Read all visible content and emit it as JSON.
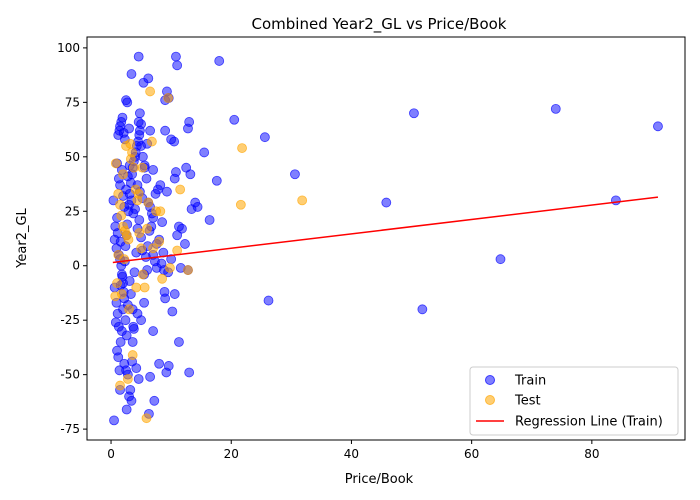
{
  "chart_data": {
    "type": "scatter",
    "title": "Combined Year2_GL vs Price/Book",
    "xlabel": "Price/Book",
    "ylabel": "Year2_GL",
    "xlim": [
      -4,
      95.5
    ],
    "ylim": [
      -80,
      105
    ],
    "xticks": [
      0,
      20,
      40,
      60,
      80
    ],
    "yticks": [
      -75,
      -50,
      -25,
      0,
      25,
      50,
      75,
      100
    ],
    "grid": false,
    "legend_position": "lower-right",
    "series": [
      {
        "name": "Train",
        "color": "#0000ff",
        "points": [
          [
            0.5,
            -71
          ],
          [
            0.8,
            -26
          ],
          [
            1.0,
            -39
          ],
          [
            1.2,
            -42
          ],
          [
            1.5,
            -57
          ],
          [
            1.4,
            -48
          ],
          [
            1.6,
            -35
          ],
          [
            1.8,
            -30
          ],
          [
            2.0,
            -20
          ],
          [
            2.2,
            -45
          ],
          [
            2.5,
            -48
          ],
          [
            2.6,
            -66
          ],
          [
            2.8,
            -50
          ],
          [
            3.0,
            -60
          ],
          [
            3.2,
            -57
          ],
          [
            3.4,
            -62
          ],
          [
            3.5,
            -44
          ],
          [
            3.6,
            -35
          ],
          [
            3.7,
            -28
          ],
          [
            3.8,
            -29
          ],
          [
            4.2,
            -47
          ],
          [
            4.6,
            -52
          ],
          [
            5.0,
            -25
          ],
          [
            5.5,
            -17
          ],
          [
            6.0,
            -2
          ],
          [
            6.3,
            -68
          ],
          [
            6.5,
            -51
          ],
          [
            7.0,
            -30
          ],
          [
            7.2,
            -62
          ],
          [
            8.0,
            -45
          ],
          [
            9.2,
            -49
          ],
          [
            9.6,
            -46
          ],
          [
            9.0,
            -15
          ],
          [
            8.9,
            -12
          ],
          [
            10.2,
            -21
          ],
          [
            10.6,
            -13
          ],
          [
            11.3,
            -35
          ],
          [
            11.6,
            -1
          ],
          [
            13.0,
            -49
          ],
          [
            12.8,
            -2
          ],
          [
            0.6,
            12
          ],
          [
            0.7,
            18
          ],
          [
            0.9,
            8
          ],
          [
            1.0,
            22
          ],
          [
            1.1,
            15
          ],
          [
            1.3,
            5
          ],
          [
            1.5,
            3
          ],
          [
            1.6,
            11
          ],
          [
            1.7,
            0
          ],
          [
            1.9,
            -5
          ],
          [
            2.0,
            -8
          ],
          [
            2.1,
            -12
          ],
          [
            2.3,
            2
          ],
          [
            2.4,
            9
          ],
          [
            2.6,
            14
          ],
          [
            2.7,
            19
          ],
          [
            2.9,
            25
          ],
          [
            3.0,
            28
          ],
          [
            3.1,
            33
          ],
          [
            3.3,
            38
          ],
          [
            3.5,
            42
          ],
          [
            3.6,
            45
          ],
          [
            3.8,
            48
          ],
          [
            4.0,
            50
          ],
          [
            4.1,
            52
          ],
          [
            4.3,
            55
          ],
          [
            4.5,
            57
          ],
          [
            4.7,
            60
          ],
          [
            4.8,
            62
          ],
          [
            5.0,
            65
          ],
          [
            1.2,
            60
          ],
          [
            1.4,
            62
          ],
          [
            1.5,
            64
          ],
          [
            1.7,
            66
          ],
          [
            1.9,
            68
          ],
          [
            2.1,
            61
          ],
          [
            2.3,
            58
          ],
          [
            2.5,
            76
          ],
          [
            2.7,
            75
          ],
          [
            3.0,
            63
          ],
          [
            3.4,
            88
          ],
          [
            4.6,
            96
          ],
          [
            5.4,
            84
          ],
          [
            6.2,
            86
          ],
          [
            4.6,
            66
          ],
          [
            4.8,
            70
          ],
          [
            5.0,
            55
          ],
          [
            5.3,
            50
          ],
          [
            5.6,
            45
          ],
          [
            5.9,
            40
          ],
          [
            6.2,
            29
          ],
          [
            6.5,
            27
          ],
          [
            6.8,
            24
          ],
          [
            7.0,
            22
          ],
          [
            7.4,
            33
          ],
          [
            7.8,
            35
          ],
          [
            8.2,
            37
          ],
          [
            8.5,
            20
          ],
          [
            8.8,
            -2
          ],
          [
            7.6,
            10
          ],
          [
            9.0,
            76
          ],
          [
            9.3,
            80
          ],
          [
            9.6,
            77
          ],
          [
            9.0,
            62
          ],
          [
            9.3,
            34
          ],
          [
            10.0,
            58
          ],
          [
            10.5,
            57
          ],
          [
            10.6,
            40
          ],
          [
            10.8,
            43
          ],
          [
            11.0,
            14
          ],
          [
            11.3,
            18
          ],
          [
            11.8,
            17
          ],
          [
            12.3,
            10
          ],
          [
            12.5,
            45
          ],
          [
            12.8,
            63
          ],
          [
            13.0,
            66
          ],
          [
            13.2,
            42
          ],
          [
            13.4,
            26
          ],
          [
            14.0,
            29
          ],
          [
            14.4,
            27
          ],
          [
            10.8,
            96
          ],
          [
            11.0,
            92
          ],
          [
            15.5,
            52
          ],
          [
            16.4,
            21
          ],
          [
            17.6,
            39
          ],
          [
            18.0,
            94
          ],
          [
            20.5,
            67
          ],
          [
            25.6,
            59
          ],
          [
            26.2,
            -16
          ],
          [
            30.6,
            42
          ],
          [
            45.8,
            29
          ],
          [
            50.4,
            70
          ],
          [
            51.8,
            -20
          ],
          [
            64.8,
            3
          ],
          [
            74.0,
            72
          ],
          [
            84.0,
            30
          ],
          [
            91.0,
            64
          ],
          [
            0.4,
            30
          ],
          [
            0.6,
            -10
          ],
          [
            0.9,
            -17
          ],
          [
            1.1,
            -22
          ],
          [
            1.3,
            -28
          ],
          [
            1.6,
            -9
          ],
          [
            1.8,
            -4
          ],
          [
            2.2,
            -15
          ],
          [
            2.4,
            -25
          ],
          [
            2.6,
            -32
          ],
          [
            2.8,
            -18
          ],
          [
            3.1,
            -7
          ],
          [
            3.3,
            -13
          ],
          [
            3.6,
            -20
          ],
          [
            3.9,
            -3
          ],
          [
            4.2,
            6
          ],
          [
            4.4,
            17
          ],
          [
            4.7,
            21
          ],
          [
            5.0,
            13
          ],
          [
            5.2,
            7
          ],
          [
            5.5,
            -4
          ],
          [
            5.8,
            4
          ],
          [
            6.1,
            9
          ],
          [
            6.4,
            16
          ],
          [
            6.7,
            18
          ],
          [
            7.0,
            5
          ],
          [
            7.3,
            2
          ],
          [
            7.6,
            -1
          ],
          [
            8.0,
            12
          ],
          [
            8.4,
            1
          ],
          [
            8.7,
            6
          ],
          [
            9.5,
            -3
          ],
          [
            10.0,
            3
          ],
          [
            1.0,
            47
          ],
          [
            1.3,
            40
          ],
          [
            1.5,
            37
          ],
          [
            1.8,
            44
          ],
          [
            2.0,
            32
          ],
          [
            2.2,
            27
          ],
          [
            2.5,
            35
          ],
          [
            2.8,
            41
          ],
          [
            3.1,
            46
          ],
          [
            3.4,
            30
          ],
          [
            3.7,
            24
          ],
          [
            4.0,
            26
          ],
          [
            4.4,
            37
          ],
          [
            4.8,
            34
          ],
          [
            5.2,
            31
          ],
          [
            5.6,
            46
          ],
          [
            6.0,
            56
          ],
          [
            6.5,
            62
          ],
          [
            7.0,
            44
          ],
          [
            4.4,
            -22
          ]
        ]
      },
      {
        "name": "Test",
        "color": "#ffa500",
        "points": [
          [
            0.8,
            47
          ],
          [
            1.2,
            33
          ],
          [
            1.5,
            28
          ],
          [
            1.7,
            23
          ],
          [
            2.0,
            18
          ],
          [
            2.3,
            16
          ],
          [
            2.6,
            14
          ],
          [
            2.9,
            12
          ],
          [
            3.2,
            56
          ],
          [
            3.5,
            52
          ],
          [
            3.8,
            45
          ],
          [
            4.1,
            35
          ],
          [
            4.4,
            30
          ],
          [
            4.7,
            15
          ],
          [
            5.0,
            8
          ],
          [
            5.3,
            -4
          ],
          [
            5.6,
            -10
          ],
          [
            5.9,
            -70
          ],
          [
            6.5,
            80
          ],
          [
            6.8,
            57
          ],
          [
            7.0,
            8
          ],
          [
            7.5,
            25
          ],
          [
            8.0,
            11
          ],
          [
            8.5,
            -6
          ],
          [
            9.5,
            77
          ],
          [
            9.8,
            -1
          ],
          [
            11.0,
            7
          ],
          [
            11.5,
            35
          ],
          [
            12.8,
            -2
          ],
          [
            21.8,
            54
          ],
          [
            21.6,
            28
          ],
          [
            31.8,
            30
          ],
          [
            1.0,
            -8
          ],
          [
            1.5,
            -55
          ],
          [
            2.8,
            -52
          ],
          [
            3.0,
            -20
          ],
          [
            3.6,
            -41
          ],
          [
            4.2,
            -10
          ],
          [
            2.0,
            42
          ],
          [
            2.5,
            55
          ],
          [
            3.3,
            49
          ],
          [
            4.6,
            33
          ],
          [
            1.2,
            5
          ],
          [
            1.8,
            -13
          ],
          [
            2.2,
            3
          ],
          [
            0.7,
            -14
          ],
          [
            5.2,
            45
          ],
          [
            6.2,
            29
          ],
          [
            6.0,
            17
          ],
          [
            8.2,
            25
          ]
        ]
      }
    ],
    "regression_line": {
      "name": "Regression Line (Train)",
      "color": "#ff0000",
      "points": [
        [
          0.3,
          1.5
        ],
        [
          91.0,
          31.5
        ]
      ]
    }
  }
}
